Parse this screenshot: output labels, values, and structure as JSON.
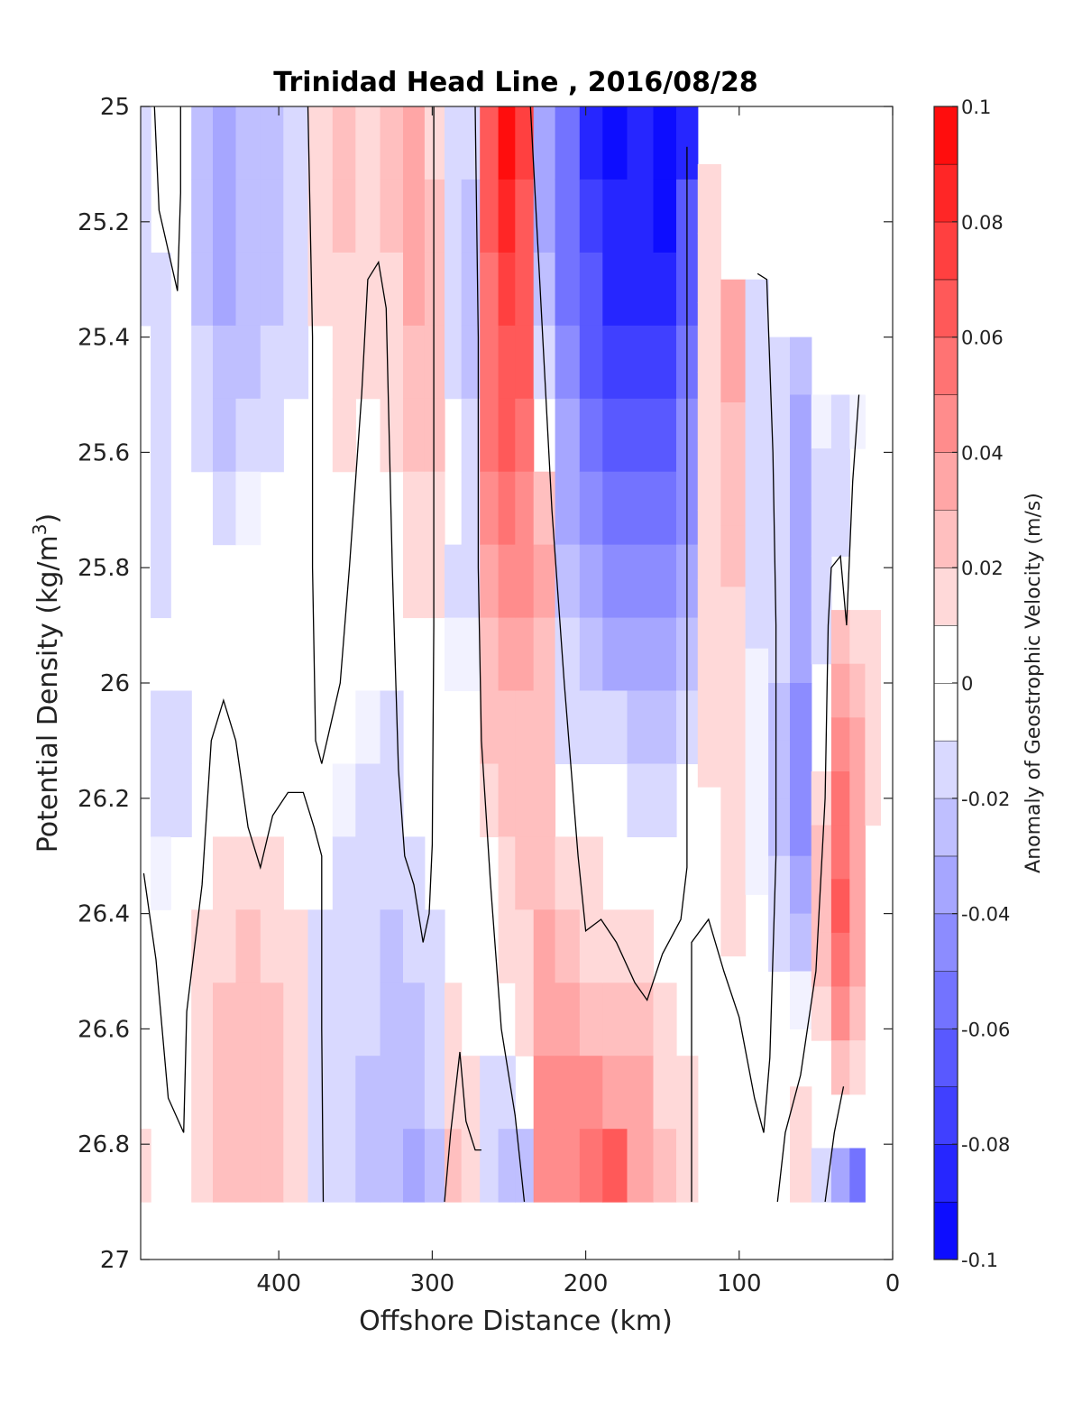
{
  "chart_data": {
    "type": "heatmap",
    "title": "Trinidad Head Line , 2016/08/28",
    "xlabel": "Offshore Distance (km)",
    "ylabel_main": "Potential Density (kg/m",
    "ylabel_sup": "3",
    "ylabel_close": ")",
    "colorbar_label": "Anomaly of Geostrophic Velocity (m/s)",
    "xlim": [
      490,
      0
    ],
    "ylim": [
      25,
      27
    ],
    "y_reversed": true,
    "x_reversed": true,
    "x_ticks": [
      {
        "value": 400,
        "label": "400"
      },
      {
        "value": 300,
        "label": "300"
      },
      {
        "value": 200,
        "label": "200"
      },
      {
        "value": 100,
        "label": "100"
      },
      {
        "value": 0,
        "label": "0"
      }
    ],
    "y_ticks": [
      {
        "value": 25,
        "label": "25"
      },
      {
        "value": 25.2,
        "label": "25.2"
      },
      {
        "value": 25.4,
        "label": "25.4"
      },
      {
        "value": 25.6,
        "label": "25.6"
      },
      {
        "value": 25.8,
        "label": "25.8"
      },
      {
        "value": 26,
        "label": "26"
      },
      {
        "value": 26.2,
        "label": "26.2"
      },
      {
        "value": 26.4,
        "label": "26.4"
      },
      {
        "value": 26.6,
        "label": "26.6"
      },
      {
        "value": 26.8,
        "label": "26.8"
      },
      {
        "value": 27,
        "label": "27"
      }
    ],
    "colorbar": {
      "min": -0.1,
      "max": 0.1,
      "levels": [
        -0.1,
        -0.09,
        -0.08,
        -0.07,
        -0.06,
        -0.05,
        -0.04,
        -0.03,
        -0.02,
        -0.01,
        0,
        0.01,
        0.02,
        0.03,
        0.04,
        0.05,
        0.06,
        0.07,
        0.08,
        0.09,
        0.1
      ],
      "ticks": [
        {
          "value": 0.1,
          "label": "0.1"
        },
        {
          "value": 0.08,
          "label": "0.08"
        },
        {
          "value": 0.06,
          "label": "0.06"
        },
        {
          "value": 0.04,
          "label": "0.04"
        },
        {
          "value": 0.02,
          "label": "0.02"
        },
        {
          "value": 0,
          "label": "0"
        },
        {
          "value": -0.02,
          "label": "-0.02"
        },
        {
          "value": -0.04,
          "label": "-0.04"
        },
        {
          "value": -0.06,
          "label": "-0.06"
        },
        {
          "value": -0.08,
          "label": "-0.08"
        },
        {
          "value": -0.1,
          "label": "-0.1"
        }
      ],
      "negative_color": "#0000ff",
      "zero_color": "#ffffff",
      "positive_color": "#ff0000"
    },
    "data_density_max": 26.9,
    "columns": [
      {
        "x": 490,
        "top": 25.0,
        "v": [
          -0.012,
          -0.012,
          -0.012,
          -0.008,
          -0.004,
          0.0,
          0.0,
          0.0,
          0.0,
          0.0,
          0.0,
          0.002,
          0.002,
          0.0,
          0.012
        ]
      },
      {
        "x": 477,
        "top": 25.0,
        "v": [
          -0.002,
          -0.004,
          -0.012,
          -0.016,
          -0.016,
          -0.016,
          -0.012,
          -0.008,
          -0.014,
          -0.018,
          -0.01,
          0.0,
          0.0,
          0.0,
          0.0
        ]
      },
      {
        "x": 464,
        "top": 25.0,
        "v": [
          0.0,
          0.0,
          0.0,
          0.0,
          0.0,
          0.0,
          0.0,
          0.0,
          -0.012,
          -0.016,
          -0.006,
          0.0,
          0.0,
          0.004,
          0.008
        ]
      },
      {
        "x": 450,
        "top": 25.0,
        "v": [
          -0.022,
          -0.025,
          -0.024,
          -0.02,
          -0.016,
          -0.008,
          -0.004,
          0.0,
          0.0,
          0.0,
          0.004,
          0.012,
          0.016,
          0.016,
          0.016
        ]
      },
      {
        "x": 436,
        "top": 25.0,
        "v": [
          -0.034,
          -0.036,
          -0.032,
          -0.028,
          -0.022,
          -0.016,
          -0.008,
          0.0,
          0.0,
          0.004,
          0.014,
          0.018,
          0.022,
          0.024,
          0.024
        ]
      },
      {
        "x": 420,
        "top": 25.0,
        "v": [
          -0.028,
          -0.028,
          -0.026,
          -0.022,
          -0.016,
          -0.01,
          -0.004,
          0.0,
          0.0,
          0.006,
          0.016,
          0.02,
          0.024,
          0.024,
          0.024
        ]
      },
      {
        "x": 404,
        "top": 25.0,
        "v": [
          -0.026,
          -0.024,
          -0.022,
          -0.018,
          -0.014,
          -0.008,
          -0.004,
          0.0,
          0.0,
          0.004,
          0.012,
          0.016,
          0.02,
          0.022,
          0.02
        ]
      },
      {
        "x": 390,
        "top": 25.0,
        "v": [
          -0.018,
          -0.016,
          -0.014,
          -0.012,
          -0.008,
          -0.006,
          -0.002,
          0.0,
          0.0,
          0.002,
          0.006,
          0.012,
          0.014,
          0.016,
          0.014
        ]
      },
      {
        "x": 372,
        "top": 25.0,
        "v": [
          0.01,
          0.012,
          0.012,
          0.008,
          0.004,
          0.002,
          0.0,
          0.0,
          -0.004,
          -0.006,
          -0.008,
          -0.012,
          -0.014,
          -0.016,
          -0.016
        ]
      },
      {
        "x": 358,
        "top": 25.0,
        "v": [
          0.024,
          0.022,
          0.018,
          0.016,
          0.012,
          0.004,
          0.0,
          -0.004,
          -0.008,
          -0.01,
          -0.012,
          -0.016,
          -0.018,
          -0.018,
          -0.018
        ]
      },
      {
        "x": 342,
        "top": 25.0,
        "v": [
          0.014,
          0.014,
          0.012,
          0.012,
          0.006,
          0.0,
          0.0,
          -0.004,
          -0.01,
          -0.012,
          -0.014,
          -0.018,
          -0.02,
          -0.022,
          -0.022
        ]
      },
      {
        "x": 326,
        "top": 25.0,
        "v": [
          0.026,
          0.02,
          0.014,
          0.012,
          0.012,
          0.006,
          0.0,
          -0.008,
          -0.012,
          -0.016,
          -0.018,
          -0.022,
          -0.024,
          -0.026,
          -0.026
        ]
      },
      {
        "x": 312,
        "top": 25.0,
        "v": [
          0.036,
          0.034,
          0.032,
          0.028,
          0.024,
          0.016,
          0.01,
          0.004,
          0.0,
          -0.004,
          -0.012,
          -0.018,
          -0.026,
          -0.028,
          -0.032
        ]
      },
      {
        "x": 298,
        "top": 25.0,
        "v": [
          0.018,
          0.024,
          0.026,
          0.024,
          0.02,
          0.014,
          0.012,
          0.006,
          0.002,
          -0.002,
          -0.006,
          -0.012,
          -0.018,
          -0.02,
          -0.024
        ]
      },
      {
        "x": 286,
        "top": 25.0,
        "v": [
          -0.016,
          -0.018,
          -0.016,
          -0.014,
          -0.008,
          -0.008,
          -0.012,
          -0.01,
          -0.004,
          0.0,
          0.0,
          0.0,
          0.012,
          0.016,
          0.02
        ]
      },
      {
        "x": 276,
        "top": 25.0,
        "v": [
          -0.02,
          -0.024,
          -0.026,
          -0.026,
          -0.02,
          -0.014,
          -0.012,
          -0.01,
          -0.006,
          0.0,
          0.0,
          0.0,
          0.006,
          0.01,
          0.012
        ]
      },
      {
        "x": 262,
        "top": 25.0,
        "v": [
          0.068,
          0.062,
          0.058,
          0.054,
          0.052,
          0.042,
          0.034,
          0.028,
          0.022,
          0.014,
          0.006,
          0.0,
          -0.006,
          -0.012,
          -0.018
        ]
      },
      {
        "x": 252,
        "top": 25.0,
        "v": [
          0.094,
          0.082,
          0.074,
          0.068,
          0.062,
          0.054,
          0.046,
          0.036,
          0.028,
          0.024,
          0.018,
          0.014,
          0.006,
          -0.014,
          -0.03
        ]
      },
      {
        "x": 240,
        "top": 25.0,
        "v": [
          0.07,
          0.068,
          0.064,
          0.06,
          0.054,
          0.046,
          0.04,
          0.032,
          0.024,
          0.022,
          0.02,
          0.016,
          0.01,
          0.002,
          -0.028
        ]
      },
      {
        "x": 228,
        "top": 25.0,
        "v": [
          -0.04,
          -0.034,
          -0.024,
          -0.012,
          0.006,
          0.022,
          0.03,
          0.028,
          0.026,
          0.026,
          0.028,
          0.032,
          0.038,
          0.04,
          0.046
        ]
      },
      {
        "x": 212,
        "top": 25.0,
        "v": [
          -0.06,
          -0.058,
          -0.052,
          -0.046,
          -0.04,
          -0.032,
          -0.026,
          -0.018,
          -0.012,
          0.006,
          0.018,
          0.026,
          0.034,
          0.04,
          0.048
        ]
      },
      {
        "x": 196,
        "top": 25.0,
        "v": [
          -0.082,
          -0.078,
          -0.07,
          -0.062,
          -0.056,
          -0.046,
          -0.036,
          -0.026,
          -0.016,
          -0.004,
          0.012,
          0.018,
          0.028,
          0.04,
          0.056
        ]
      },
      {
        "x": 182,
        "top": 25.0,
        "v": [
          -0.092,
          -0.088,
          -0.082,
          -0.074,
          -0.064,
          -0.056,
          -0.044,
          -0.032,
          -0.02,
          -0.008,
          0.006,
          0.014,
          0.024,
          0.038,
          0.06
        ]
      },
      {
        "x": 164,
        "top": 25.0,
        "v": [
          -0.088,
          -0.09,
          -0.082,
          -0.074,
          -0.066,
          -0.058,
          -0.05,
          -0.04,
          -0.026,
          -0.012,
          0.002,
          0.01,
          0.02,
          0.03,
          0.034
        ]
      },
      {
        "x": 148,
        "top": 25.0,
        "v": [
          -0.096,
          -0.094,
          -0.084,
          -0.078,
          -0.07,
          -0.06,
          -0.048,
          -0.038,
          -0.024,
          -0.014,
          -0.002,
          0.004,
          0.012,
          0.016,
          0.02
        ]
      },
      {
        "x": 134,
        "top": 25.0,
        "v": [
          -0.082,
          -0.07,
          -0.064,
          -0.058,
          -0.05,
          -0.044,
          -0.034,
          -0.026,
          -0.016,
          -0.008,
          0.0,
          0.002,
          0.006,
          0.01,
          0.012
        ]
      },
      {
        "x": 120,
        "top": 25.1,
        "v": [
          0.012,
          0.016,
          0.018,
          0.016,
          0.016,
          0.014,
          0.012,
          0.012,
          0.01,
          0.004,
          0.0,
          0.0,
          -0.004,
          -0.006,
          -0.008
        ]
      },
      {
        "x": 104,
        "top": 25.3,
        "v": [
          0.032,
          0.034,
          0.028,
          0.024,
          0.02,
          0.018,
          0.014,
          0.014,
          0.014,
          0.01,
          0.01,
          0.004,
          0.0,
          0.0,
          0.0
        ]
      },
      {
        "x": 88,
        "top": 25.3,
        "v": [
          -0.012,
          -0.014,
          -0.012,
          -0.012,
          -0.012,
          -0.012,
          -0.01,
          -0.01,
          -0.01,
          -0.01,
          -0.006,
          -0.002,
          0.0,
          0.0,
          0.0
        ]
      },
      {
        "x": 74,
        "top": 25.4,
        "v": [
          -0.014,
          -0.016,
          -0.016,
          -0.016,
          -0.018,
          -0.02,
          -0.022,
          -0.024,
          -0.022,
          -0.018,
          -0.012,
          -0.004,
          0.0,
          0.002,
          0.006
        ]
      },
      {
        "x": 60,
        "top": 25.4,
        "v": [
          -0.028,
          -0.034,
          -0.036,
          -0.038,
          -0.038,
          -0.04,
          -0.042,
          -0.044,
          -0.042,
          -0.036,
          -0.024,
          -0.01,
          0.0,
          0.012,
          0.016
        ]
      },
      {
        "x": 46,
        "top": 25.5,
        "v": [
          -0.01,
          -0.014,
          -0.018,
          -0.016,
          -0.012,
          -0.006,
          0.008,
          0.018,
          0.024,
          0.026,
          0.02,
          0.012,
          0.004,
          -0.004,
          -0.02
        ]
      },
      {
        "x": 34,
        "top": 25.5,
        "v": [
          -0.018,
          -0.016,
          -0.012,
          0.0,
          0.02,
          0.034,
          0.042,
          0.05,
          0.058,
          0.062,
          0.052,
          0.042,
          0.028,
          0.004,
          -0.04
        ]
      },
      {
        "x": 22,
        "top": 25.5,
        "v": [
          -0.01,
          -0.008,
          -0.004,
          0.004,
          0.018,
          0.026,
          0.032,
          0.034,
          0.036,
          0.038,
          0.034,
          0.028,
          0.018,
          0.004,
          -0.06
        ]
      },
      {
        "x": 14,
        "top": 25.5,
        "v": [
          0.004,
          0.006,
          0.008,
          0.008,
          0.012,
          0.016,
          0.014,
          0.012,
          0.008,
          0.004,
          0.0,
          0.0,
          0.0,
          0.0,
          0.0
        ]
      }
    ],
    "zero_contours": [
      [
        [
          488,
          26.33
        ],
        [
          480,
          26.48
        ],
        [
          472,
          26.72
        ],
        [
          462,
          26.78
        ],
        [
          460,
          26.57
        ],
        [
          450,
          26.35
        ],
        [
          444,
          26.1
        ],
        [
          436,
          26.03
        ],
        [
          428,
          26.1
        ],
        [
          420,
          26.25
        ],
        [
          412,
          26.32
        ],
        [
          404,
          26.23
        ],
        [
          394,
          26.19
        ],
        [
          384,
          26.19
        ],
        [
          377,
          26.25
        ],
        [
          372,
          26.3
        ],
        [
          372,
          26.6
        ],
        [
          371,
          26.9
        ]
      ],
      [
        [
          481,
          25.0
        ],
        [
          478,
          25.18
        ],
        [
          466,
          25.32
        ],
        [
          464,
          25.15
        ],
        [
          464,
          25.0
        ]
      ],
      [
        [
          381,
          25.0
        ],
        [
          378,
          25.4
        ],
        [
          378,
          25.8
        ],
        [
          376,
          26.1
        ],
        [
          372,
          26.14
        ],
        [
          366,
          26.07
        ],
        [
          360,
          26.0
        ],
        [
          354,
          25.8
        ],
        [
          346,
          25.5
        ],
        [
          342,
          25.3
        ],
        [
          335,
          25.27
        ],
        [
          330,
          25.35
        ],
        [
          326,
          25.8
        ],
        [
          322,
          26.15
        ],
        [
          318,
          26.3
        ],
        [
          312,
          26.35
        ],
        [
          306,
          26.45
        ],
        [
          302,
          26.4
        ],
        [
          300,
          26.28
        ],
        [
          299,
          25.9
        ],
        [
          299,
          25.0
        ]
      ],
      [
        [
          292,
          26.9
        ],
        [
          288,
          26.78
        ],
        [
          282,
          26.64
        ],
        [
          278,
          26.76
        ],
        [
          272,
          26.81
        ],
        [
          268,
          26.81
        ]
      ],
      [
        [
          272,
          25.0
        ],
        [
          270,
          25.4
        ],
        [
          270,
          25.8
        ],
        [
          268,
          26.1
        ],
        [
          262,
          26.35
        ],
        [
          255,
          26.6
        ],
        [
          246,
          26.75
        ],
        [
          240,
          26.9
        ]
      ],
      [
        [
          236,
          25.0
        ],
        [
          230,
          25.3
        ],
        [
          222,
          25.7
        ],
        [
          214,
          26.0
        ],
        [
          205,
          26.3
        ],
        [
          200,
          26.43
        ],
        [
          190,
          26.41
        ],
        [
          180,
          26.45
        ],
        [
          168,
          26.52
        ],
        [
          160,
          26.55
        ],
        [
          150,
          26.47
        ],
        [
          138,
          26.41
        ],
        [
          134,
          26.32
        ],
        [
          134,
          25.9
        ],
        [
          134,
          25.4
        ],
        [
          134,
          25.07
        ]
      ],
      [
        [
          131,
          26.9
        ],
        [
          131,
          26.6
        ],
        [
          131,
          26.45
        ],
        [
          120,
          26.41
        ],
        [
          110,
          26.5
        ],
        [
          100,
          26.58
        ],
        [
          90,
          26.72
        ],
        [
          84,
          26.78
        ],
        [
          80,
          26.65
        ],
        [
          76,
          26.3
        ],
        [
          76,
          25.9
        ],
        [
          78,
          25.6
        ],
        [
          82,
          25.3
        ],
        [
          88,
          25.29
        ]
      ],
      [
        [
          75,
          26.9
        ],
        [
          70,
          26.78
        ],
        [
          60,
          26.68
        ],
        [
          50,
          26.5
        ],
        [
          44,
          26.2
        ],
        [
          42,
          25.9
        ],
        [
          40,
          25.8
        ],
        [
          34,
          25.78
        ],
        [
          30,
          25.9
        ],
        [
          26,
          25.65
        ],
        [
          22,
          25.5
        ]
      ],
      [
        [
          44,
          26.9
        ],
        [
          38,
          26.78
        ],
        [
          32,
          26.7
        ]
      ]
    ]
  }
}
